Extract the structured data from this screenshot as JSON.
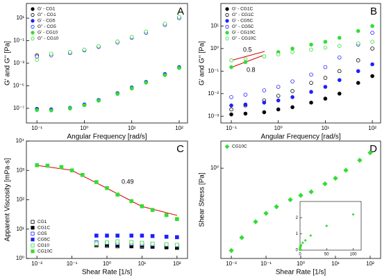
{
  "chart_data": [
    {
      "type": "scatter",
      "panel": "A",
      "xlabel": "Angular Frequency [rad/s]",
      "ylabel": "G' and G'' [Pa]",
      "xscale": "log",
      "yscale": "log",
      "legend": "upper left",
      "x": [
        0.1,
        0.2,
        0.5,
        1,
        2,
        5,
        10,
        20,
        50,
        100
      ],
      "xlim": [
        0.06,
        150
      ],
      "xticks": [
        {
          "value": 0.1,
          "label": "10⁻¹"
        },
        {
          "value": 1,
          "label": "10⁰"
        },
        {
          "value": 10,
          "label": "10¹"
        },
        {
          "value": 100,
          "label": "10²"
        }
      ],
      "ylim": [
        5e-09,
        200
      ],
      "yticks": [
        {
          "value": 1e-07,
          "label": "10⁻⁷"
        },
        {
          "value": 1e-05,
          "label": "10⁻⁵"
        },
        {
          "value": 0.001,
          "label": "10⁻³"
        },
        {
          "value": 0.1,
          "label": "10⁻¹"
        },
        {
          "value": 10,
          "label": "10¹"
        }
      ],
      "series": [
        {
          "name": "G' - CG1",
          "color": "#000000",
          "marker": "circle",
          "filled": true,
          "values": [
            8e-08,
            7e-08,
            1e-07,
            2e-07,
            5e-07,
            2e-06,
            6e-06,
            2e-05,
            0.0001,
            0.0004
          ]
        },
        {
          "name": "G'' - CG1",
          "color": "#000000",
          "marker": "circle",
          "filled": false,
          "values": [
            0.005,
            0.006,
            0.009,
            0.015,
            0.03,
            0.08,
            0.2,
            0.6,
            3,
            12
          ]
        },
        {
          "name": "G' - CG5",
          "color": "#1f1fff",
          "marker": "circle",
          "filled": true,
          "values": [
            9e-08,
            8e-08,
            1.1e-07,
            2.2e-07,
            5.5e-07,
            2.2e-06,
            7e-06,
            2.2e-05,
            0.00011,
            0.00045
          ]
        },
        {
          "name": "G'' - CG5",
          "color": "#1f1fff",
          "marker": "circle",
          "filled": false,
          "values": [
            0.004,
            0.005,
            0.008,
            0.014,
            0.028,
            0.07,
            0.18,
            0.5,
            2.5,
            10
          ]
        },
        {
          "name": "G' - CG10",
          "color": "#33dd33",
          "marker": "circle",
          "filled": true,
          "values": [
            7e-08,
            6.5e-08,
            1e-07,
            1.9e-07,
            4.8e-07,
            1.9e-06,
            6e-06,
            1.9e-05,
            9e-05,
            0.00038
          ]
        },
        {
          "name": "G'' - CG10",
          "color": "#33dd33",
          "marker": "circle",
          "filled": false,
          "values": [
            0.002,
            0.007,
            0.01,
            0.016,
            0.032,
            0.085,
            0.21,
            0.65,
            3.2,
            13
          ]
        }
      ]
    },
    {
      "type": "scatter",
      "panel": "B",
      "xlabel": "Angular Frequency [rad/s]",
      "ylabel": "G' and G'' [Pa]",
      "xscale": "log",
      "yscale": "log",
      "legend": "upper left",
      "annotations": [
        {
          "text": "0.5",
          "color": "#dd0000"
        },
        {
          "text": "0.8",
          "color": "#dd0000"
        }
      ],
      "x": [
        0.1,
        0.2,
        0.5,
        1,
        2,
        5,
        10,
        20,
        50,
        100
      ],
      "xlim": [
        0.06,
        150
      ],
      "xticks": [
        {
          "value": 0.1,
          "label": "10⁻¹"
        },
        {
          "value": 1,
          "label": "10⁰"
        },
        {
          "value": 10,
          "label": "10¹"
        },
        {
          "value": 100,
          "label": "10²"
        }
      ],
      "ylim": [
        0.0005,
        100
      ],
      "yticks": [
        {
          "value": 0.001,
          "label": "10⁻³"
        },
        {
          "value": 0.01,
          "label": "10⁻²"
        },
        {
          "value": 0.1,
          "label": "10⁻¹"
        },
        {
          "value": 1,
          "label": "10⁰"
        },
        {
          "value": 10,
          "label": "10¹"
        }
      ],
      "series": [
        {
          "name": "G' - CG1C",
          "color": "#000000",
          "marker": "circle",
          "filled": true,
          "values": [
            0.0012,
            0.0013,
            0.0015,
            0.002,
            0.0025,
            0.004,
            0.006,
            0.01,
            0.03,
            0.06
          ]
        },
        {
          "name": "G'' - CG1C",
          "color": "#000000",
          "marker": "circle",
          "filled": false,
          "values": [
            0.002,
            0.003,
            0.005,
            0.008,
            0.013,
            0.03,
            0.05,
            0.1,
            0.3,
            1
          ]
        },
        {
          "name": "G' - CG5C",
          "color": "#1f1fff",
          "marker": "circle",
          "filled": true,
          "values": [
            0.003,
            0.0033,
            0.004,
            0.005,
            0.007,
            0.012,
            0.02,
            0.04,
            0.1,
            0.2
          ]
        },
        {
          "name": "G'' - CG5C",
          "color": "#1f1fff",
          "marker": "circle",
          "filled": false,
          "values": [
            0.007,
            0.009,
            0.014,
            0.02,
            0.035,
            0.07,
            0.15,
            0.4,
            1.5,
            5
          ]
        },
        {
          "name": "G' - CG10C",
          "color": "#33dd33",
          "marker": "circle",
          "filled": true,
          "values": [
            0.15,
            0.25,
            0.45,
            0.7,
            1,
            1.5,
            2,
            3,
            6,
            10
          ]
        },
        {
          "name": "G'' - CG10C",
          "color": "#33dd33",
          "marker": "circle",
          "filled": false,
          "values": [
            0.3,
            0.35,
            0.45,
            0.55,
            0.7,
            0.9,
            1.1,
            1.3,
            1.7,
            2
          ]
        }
      ]
    },
    {
      "type": "scatter",
      "panel": "C",
      "xlabel": "Shear Rate [1/s]",
      "ylabel": "Apparent Viscosity [mPa·s]",
      "xscale": "log",
      "yscale": "log",
      "legend": "lower left",
      "annotations": [
        {
          "text": "0.49",
          "color": "#dd0000"
        }
      ],
      "x": [
        0.01,
        0.02,
        0.05,
        0.1,
        0.2,
        0.5,
        1,
        2,
        5,
        10,
        20,
        50,
        100
      ],
      "xlim": [
        0.005,
        200
      ],
      "xticks": [
        {
          "value": 0.01,
          "label": "10⁻²"
        },
        {
          "value": 0.1,
          "label": "10⁻¹"
        },
        {
          "value": 1,
          "label": "10⁰"
        },
        {
          "value": 10,
          "label": "10¹"
        },
        {
          "value": 100,
          "label": "10²"
        }
      ],
      "ylim": [
        1,
        10000
      ],
      "yticks": [
        {
          "value": 1,
          "label": "10⁰"
        },
        {
          "value": 10,
          "label": "10¹"
        },
        {
          "value": 100,
          "label": "10²"
        },
        {
          "value": 1000,
          "label": "10³"
        },
        {
          "value": 10000,
          "label": "10⁴"
        }
      ],
      "series": [
        {
          "name": "CG1",
          "color": "#000000",
          "marker": "square",
          "filled": false,
          "values": [
            null,
            null,
            null,
            null,
            null,
            2.8,
            2.7,
            2.6,
            2.6,
            2.5,
            2.5,
            2.4,
            2.3
          ]
        },
        {
          "name": "CG1C",
          "color": "#000000",
          "marker": "square",
          "filled": true,
          "values": [
            null,
            null,
            null,
            null,
            null,
            3,
            2.9,
            2.8,
            2.7,
            2.7,
            2.6,
            2.5,
            2.4
          ]
        },
        {
          "name": "CG5",
          "color": "#1f1fff",
          "marker": "square",
          "filled": false,
          "values": [
            null,
            null,
            null,
            null,
            null,
            3.5,
            3.4,
            3.3,
            3.2,
            3.1,
            3,
            2.9,
            2.8
          ]
        },
        {
          "name": "CG5C",
          "color": "#1f1fff",
          "marker": "square",
          "filled": true,
          "values": [
            null,
            null,
            null,
            null,
            null,
            6,
            6,
            6,
            6,
            6,
            5.8,
            5.5,
            5.3
          ]
        },
        {
          "name": "CG10",
          "color": "#33dd33",
          "marker": "square",
          "filled": false,
          "values": [
            null,
            null,
            null,
            null,
            null,
            3.2,
            3.5,
            3.8,
            3.6,
            3.4,
            3.2,
            3,
            2.9
          ]
        },
        {
          "name": "CG10C",
          "color": "#33dd33",
          "marker": "square",
          "filled": true,
          "values": [
            1500,
            1450,
            1300,
            1000,
            700,
            400,
            250,
            150,
            90,
            60,
            45,
            30,
            22
          ]
        }
      ]
    },
    {
      "type": "scatter",
      "panel": "D",
      "xlabel": "Shear Rate [1/s]",
      "ylabel": "Shear Stress [Pa]",
      "xscale": "log",
      "yscale": "log",
      "legend": "upper left",
      "x": [
        0.01,
        0.02,
        0.05,
        0.1,
        0.2,
        0.5,
        1,
        2,
        5,
        10,
        20,
        50,
        100
      ],
      "xlim": [
        0.005,
        200
      ],
      "xticks": [
        {
          "value": 0.01,
          "label": "10⁻²"
        },
        {
          "value": 0.1,
          "label": "10⁻¹"
        },
        {
          "value": 1,
          "label": "10⁰"
        },
        {
          "value": 10,
          "label": "10¹"
        },
        {
          "value": 100,
          "label": "10²"
        }
      ],
      "ylim": [
        0.01,
        4
      ],
      "yticks": [
        {
          "value": 1,
          "label": "10⁰"
        }
      ],
      "inset": {
        "xlim": [
          0,
          115
        ],
        "xticks": [
          0,
          50,
          100
        ],
        "ylim": [
          0,
          3
        ],
        "yticks": [
          0,
          1,
          2
        ]
      },
      "series": [
        {
          "name": "CG10C",
          "color": "#33dd33",
          "marker": "diamond",
          "filled": true,
          "values": [
            0.015,
            0.029,
            0.065,
            0.1,
            0.14,
            0.2,
            0.25,
            0.3,
            0.45,
            0.6,
            0.9,
            1.5,
            2.2
          ]
        }
      ]
    }
  ]
}
